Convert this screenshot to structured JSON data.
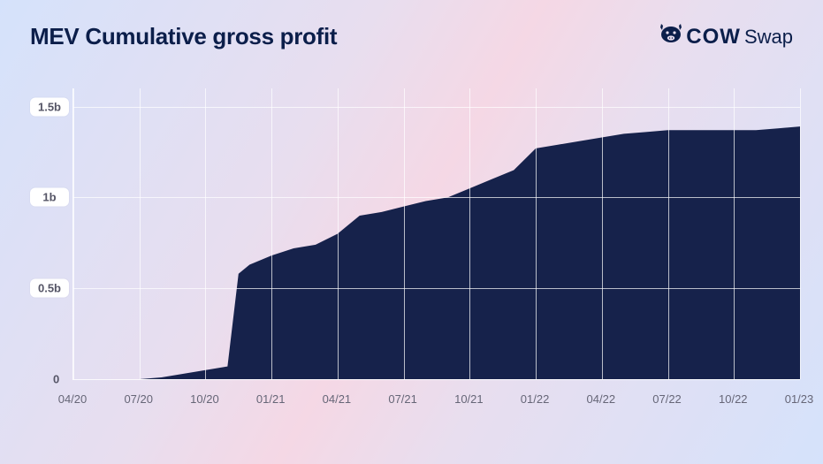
{
  "title": "MEV Cumulative gross profit",
  "brand": {
    "bold": "COW",
    "light": "Swap"
  },
  "chart": {
    "type": "area",
    "ylim": [
      0,
      1.6
    ],
    "yticks": [
      {
        "v": 0,
        "label": "0",
        "pill": false
      },
      {
        "v": 0.5,
        "label": "0.5b",
        "pill": true
      },
      {
        "v": 1.0,
        "label": "1b",
        "pill": true
      },
      {
        "v": 1.5,
        "label": "1.5b",
        "pill": true
      }
    ],
    "x_domain": [
      0,
      33
    ],
    "xticks": [
      {
        "i": 0,
        "label": "04/20"
      },
      {
        "i": 3,
        "label": "07/20"
      },
      {
        "i": 6,
        "label": "10/20"
      },
      {
        "i": 9,
        "label": "01/21"
      },
      {
        "i": 12,
        "label": "04/21"
      },
      {
        "i": 15,
        "label": "07/21"
      },
      {
        "i": 18,
        "label": "10/21"
      },
      {
        "i": 21,
        "label": "01/22"
      },
      {
        "i": 24,
        "label": "04/22"
      },
      {
        "i": 27,
        "label": "07/22"
      },
      {
        "i": 30,
        "label": "10/22"
      },
      {
        "i": 33,
        "label": "01/23"
      }
    ],
    "series": [
      {
        "i": 0,
        "v": 0.0
      },
      {
        "i": 3,
        "v": 0.0
      },
      {
        "i": 4,
        "v": 0.01
      },
      {
        "i": 5,
        "v": 0.03
      },
      {
        "i": 6,
        "v": 0.05
      },
      {
        "i": 7,
        "v": 0.07
      },
      {
        "i": 7.5,
        "v": 0.58
      },
      {
        "i": 8,
        "v": 0.63
      },
      {
        "i": 9,
        "v": 0.68
      },
      {
        "i": 10,
        "v": 0.72
      },
      {
        "i": 11,
        "v": 0.74
      },
      {
        "i": 12,
        "v": 0.8
      },
      {
        "i": 13,
        "v": 0.9
      },
      {
        "i": 14,
        "v": 0.92
      },
      {
        "i": 15,
        "v": 0.95
      },
      {
        "i": 16,
        "v": 0.98
      },
      {
        "i": 17,
        "v": 1.0
      },
      {
        "i": 18,
        "v": 1.05
      },
      {
        "i": 19,
        "v": 1.1
      },
      {
        "i": 20,
        "v": 1.15
      },
      {
        "i": 21,
        "v": 1.27
      },
      {
        "i": 22,
        "v": 1.29
      },
      {
        "i": 23,
        "v": 1.31
      },
      {
        "i": 24,
        "v": 1.33
      },
      {
        "i": 25,
        "v": 1.35
      },
      {
        "i": 26,
        "v": 1.36
      },
      {
        "i": 27,
        "v": 1.37
      },
      {
        "i": 28,
        "v": 1.37
      },
      {
        "i": 29,
        "v": 1.37
      },
      {
        "i": 30,
        "v": 1.37
      },
      {
        "i": 31,
        "v": 1.37
      },
      {
        "i": 32,
        "v": 1.38
      },
      {
        "i": 33,
        "v": 1.39
      }
    ],
    "fill_color": "#16224b",
    "grid_color": "rgba(255,255,255,0.7)",
    "tick_label_color": "#667",
    "pill_bg": "#ffffff"
  }
}
